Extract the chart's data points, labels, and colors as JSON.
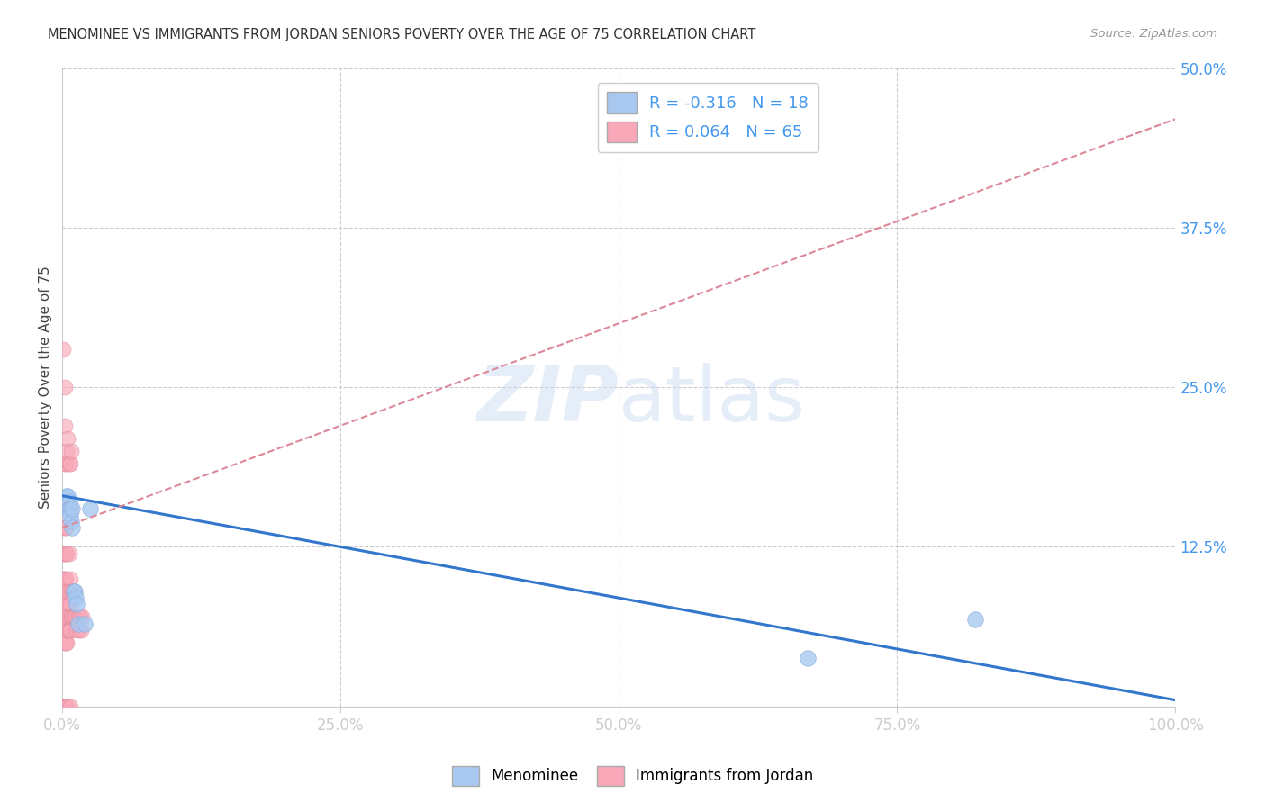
{
  "title": "MENOMINEE VS IMMIGRANTS FROM JORDAN SENIORS POVERTY OVER THE AGE OF 75 CORRELATION CHART",
  "source": "Source: ZipAtlas.com",
  "ylabel": "Seniors Poverty Over the Age of 75",
  "xlim": [
    0,
    1.0
  ],
  "ylim": [
    0,
    0.5
  ],
  "xticks": [
    0.0,
    0.25,
    0.5,
    0.75,
    1.0
  ],
  "xticklabels": [
    "0.0%",
    "25.0%",
    "50.0%",
    "75.0%",
    "100.0%"
  ],
  "yticks_right": [
    0.125,
    0.25,
    0.375,
    0.5
  ],
  "yticklabels_right": [
    "12.5%",
    "25.0%",
    "37.5%",
    "50.0%"
  ],
  "menominee_R": -0.316,
  "menominee_N": 18,
  "jordan_R": 0.064,
  "jordan_N": 65,
  "menominee_color": "#a8c8f0",
  "jordan_color": "#f8a8b8",
  "menominee_edge_color": "#88aadd",
  "jordan_edge_color": "#dd8899",
  "menominee_line_color": "#3377cc",
  "jordan_line_color": "#dd8899",
  "background_color": "#ffffff",
  "grid_color": "#cccccc",
  "tick_color": "#4499ee",
  "watermark_color": "#c5d8f0",
  "menominee_x": [
    0.004,
    0.005,
    0.006,
    0.006,
    0.007,
    0.007,
    0.008,
    0.009,
    0.009,
    0.01,
    0.011,
    0.012,
    0.013,
    0.014,
    0.02,
    0.025,
    0.67,
    0.82
  ],
  "menominee_y": [
    0.165,
    0.165,
    0.16,
    0.155,
    0.155,
    0.15,
    0.145,
    0.14,
    0.155,
    0.09,
    0.09,
    0.085,
    0.08,
    0.065,
    0.065,
    0.155,
    0.038,
    0.068
  ],
  "jordan_x": [
    0.001,
    0.001,
    0.001,
    0.001,
    0.001,
    0.001,
    0.001,
    0.001,
    0.001,
    0.001,
    0.002,
    0.002,
    0.002,
    0.002,
    0.002,
    0.002,
    0.002,
    0.002,
    0.002,
    0.002,
    0.002,
    0.003,
    0.003,
    0.003,
    0.003,
    0.003,
    0.003,
    0.003,
    0.003,
    0.003,
    0.003,
    0.004,
    0.004,
    0.004,
    0.004,
    0.004,
    0.005,
    0.005,
    0.005,
    0.005,
    0.006,
    0.006,
    0.006,
    0.006,
    0.006,
    0.007,
    0.007,
    0.007,
    0.007,
    0.007,
    0.008,
    0.008,
    0.008,
    0.009,
    0.009,
    0.01,
    0.01,
    0.011,
    0.012,
    0.013,
    0.014,
    0.015,
    0.016,
    0.017,
    0.018
  ],
  "jordan_y": [
    0.0,
    0.0,
    0.06,
    0.07,
    0.08,
    0.1,
    0.12,
    0.14,
    0.16,
    0.28,
    0.0,
    0.0,
    0.05,
    0.06,
    0.08,
    0.1,
    0.12,
    0.14,
    0.19,
    0.22,
    0.25,
    0.0,
    0.05,
    0.06,
    0.07,
    0.08,
    0.1,
    0.12,
    0.14,
    0.16,
    0.19,
    0.05,
    0.07,
    0.09,
    0.12,
    0.2,
    0.0,
    0.06,
    0.09,
    0.21,
    0.06,
    0.07,
    0.09,
    0.12,
    0.19,
    0.0,
    0.06,
    0.08,
    0.1,
    0.19,
    0.07,
    0.09,
    0.2,
    0.07,
    0.09,
    0.07,
    0.09,
    0.07,
    0.07,
    0.06,
    0.07,
    0.06,
    0.07,
    0.06,
    0.07
  ],
  "men_line_x0": 0.0,
  "men_line_x1": 1.0,
  "men_line_y0": 0.165,
  "men_line_y1": 0.005,
  "jor_line_x0": 0.0,
  "jor_line_x1": 1.0,
  "jor_line_y0": 0.14,
  "jor_line_y1": 0.46
}
